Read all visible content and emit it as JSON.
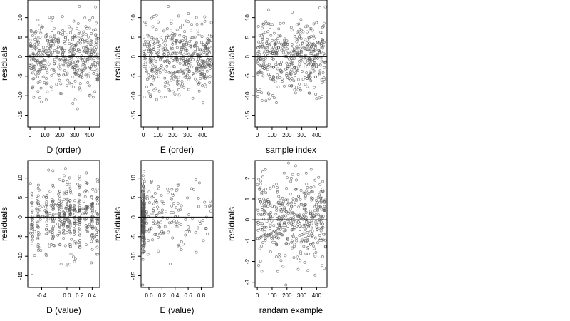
{
  "figure": {
    "colors": {
      "point": "#555555",
      "axis": "#000000",
      "zero_line": "#000000",
      "background": "#ffffff"
    }
  },
  "chart_data": [
    {
      "type": "scatter",
      "xlabel": "D (order)",
      "ylabel": "residuals",
      "xlim": [
        -15,
        470
      ],
      "ylim": [
        -18,
        14.5
      ],
      "xticks": [
        0,
        100,
        200,
        300,
        400
      ],
      "xtick_labels": [
        "0",
        "100",
        "200",
        "300",
        "400"
      ],
      "yticks": [
        -15,
        -10,
        -5,
        0,
        5,
        10
      ],
      "ytick_labels": [
        "-15",
        "-10",
        "-5",
        "0",
        "5",
        "10"
      ],
      "hline": 0,
      "grid": false,
      "n_points": 460,
      "x_mode": "index",
      "x_range": [
        0,
        460
      ],
      "y_sd": 4.6
    },
    {
      "type": "scatter",
      "xlabel": "E (order)",
      "ylabel": "residuals",
      "xlim": [
        -15,
        470
      ],
      "ylim": [
        -18,
        14.5
      ],
      "xticks": [
        0,
        100,
        200,
        300,
        400
      ],
      "xtick_labels": [
        "0",
        "100",
        "200",
        "300",
        "400"
      ],
      "yticks": [
        -15,
        -10,
        -5,
        0,
        5,
        10
      ],
      "ytick_labels": [
        "-15",
        "-10",
        "-5",
        "0",
        "5",
        "10"
      ],
      "hline": 0,
      "grid": false,
      "n_points": 460,
      "x_mode": "index",
      "x_range": [
        0,
        460
      ],
      "y_sd": 4.6
    },
    {
      "type": "scatter",
      "xlabel": "sample index",
      "ylabel": "residuals",
      "xlim": [
        -15,
        470
      ],
      "ylim": [
        -18,
        14.5
      ],
      "xticks": [
        0,
        100,
        200,
        300,
        400
      ],
      "xtick_labels": [
        "0",
        "100",
        "200",
        "300",
        "400"
      ],
      "yticks": [
        -15,
        -10,
        -5,
        0,
        5,
        10
      ],
      "ytick_labels": [
        "-15",
        "-10",
        "-5",
        "0",
        "5",
        "10"
      ],
      "hline": 0,
      "grid": false,
      "n_points": 460,
      "x_mode": "index",
      "x_range": [
        0,
        460
      ],
      "y_sd": 4.6
    },
    {
      "type": "scatter",
      "xlabel": "D (value)",
      "ylabel": "residuals",
      "xlim": [
        -0.62,
        0.52
      ],
      "ylim": [
        -18,
        14.5
      ],
      "xticks": [
        -0.4,
        0.0,
        0.2,
        0.4
      ],
      "xtick_labels": [
        "-0.4",
        "0.0",
        "0.2",
        "0.4"
      ],
      "yticks": [
        -15,
        -10,
        -5,
        0,
        5,
        10
      ],
      "ytick_labels": [
        "-15",
        "-10",
        "-5",
        "0",
        "5",
        "10"
      ],
      "hline": 0,
      "grid": false,
      "n_points": 460,
      "x_mode": "columns",
      "x_columns": [
        -0.55,
        -0.45,
        -0.32,
        -0.22,
        -0.12,
        -0.05,
        0.0,
        0.05,
        0.12,
        0.2,
        0.3,
        0.4,
        0.48
      ],
      "x_range": [
        -0.58,
        0.5
      ],
      "y_sd": 4.6
    },
    {
      "type": "scatter",
      "xlabel": "E (value)",
      "ylabel": "residuals",
      "xlim": [
        -0.12,
        0.98
      ],
      "ylim": [
        -18,
        14.5
      ],
      "xticks": [
        0.0,
        0.2,
        0.4,
        0.6,
        0.8
      ],
      "xtick_labels": [
        "0.0",
        "0.2",
        "0.4",
        "0.6",
        "0.8"
      ],
      "yticks": [
        -15,
        -10,
        -5,
        0,
        5,
        10
      ],
      "ytick_labels": [
        "-15",
        "-10",
        "-5",
        "0",
        "5",
        "10"
      ],
      "hline": 0,
      "grid": false,
      "n_points": 360,
      "x_mode": "skewed",
      "x_cluster": -0.08,
      "x_range": [
        -0.1,
        0.95
      ],
      "y_sd": 4.6
    },
    {
      "type": "scatter",
      "xlabel": "randam example",
      "ylabel": "residuals",
      "xlim": [
        -15,
        470
      ],
      "ylim": [
        -3.25,
        2.85
      ],
      "xticks": [
        0,
        100,
        200,
        300,
        400
      ],
      "xtick_labels": [
        "0",
        "100",
        "200",
        "300",
        "400"
      ],
      "yticks": [
        -3,
        -2,
        -1,
        0,
        1,
        2
      ],
      "ytick_labels": [
        "-3",
        "-2",
        "-1",
        "0",
        "1",
        "2"
      ],
      "hline": 0,
      "grid": false,
      "n_points": 460,
      "x_mode": "index",
      "x_range": [
        0,
        460
      ],
      "y_sd": 1.0
    }
  ]
}
